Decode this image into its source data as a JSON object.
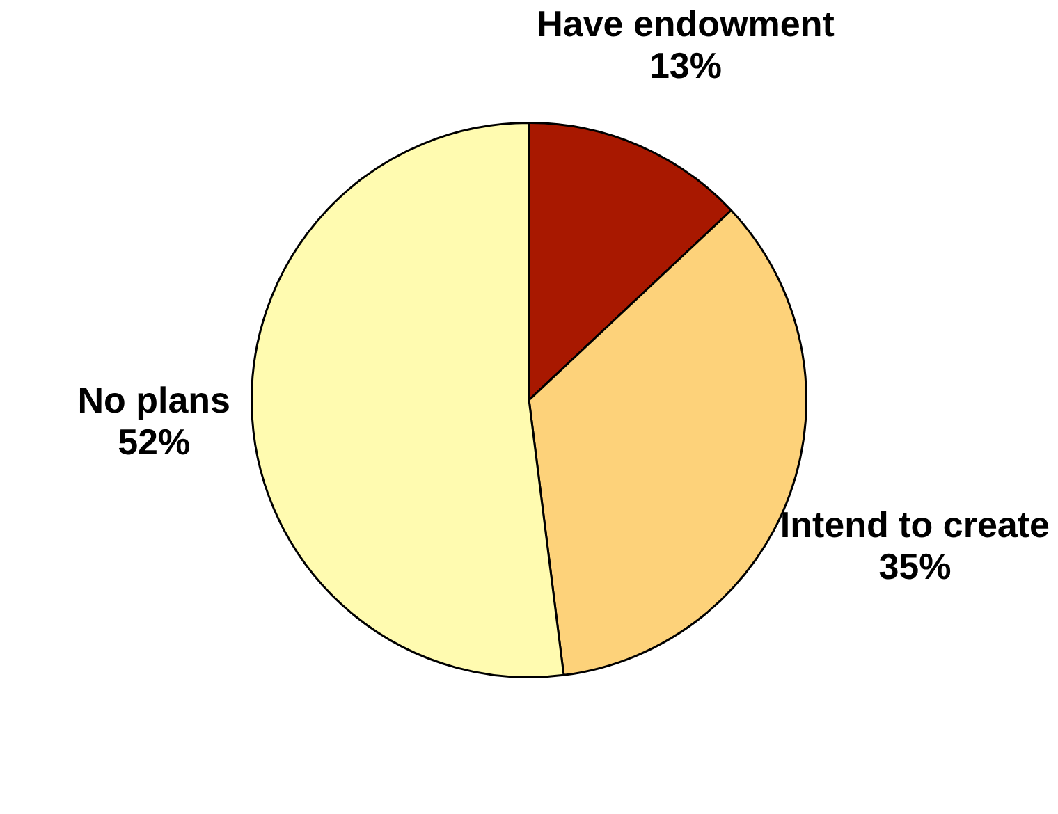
{
  "chart_data": {
    "type": "pie",
    "categories": [
      "Have endowment",
      "Intend to create",
      "No plans"
    ],
    "values": [
      13,
      35,
      52
    ],
    "colors": [
      "#a81800",
      "#fdd27a",
      "#fffbb0"
    ],
    "value_labels": [
      "13%",
      "35%",
      "52%"
    ],
    "legend": false
  }
}
